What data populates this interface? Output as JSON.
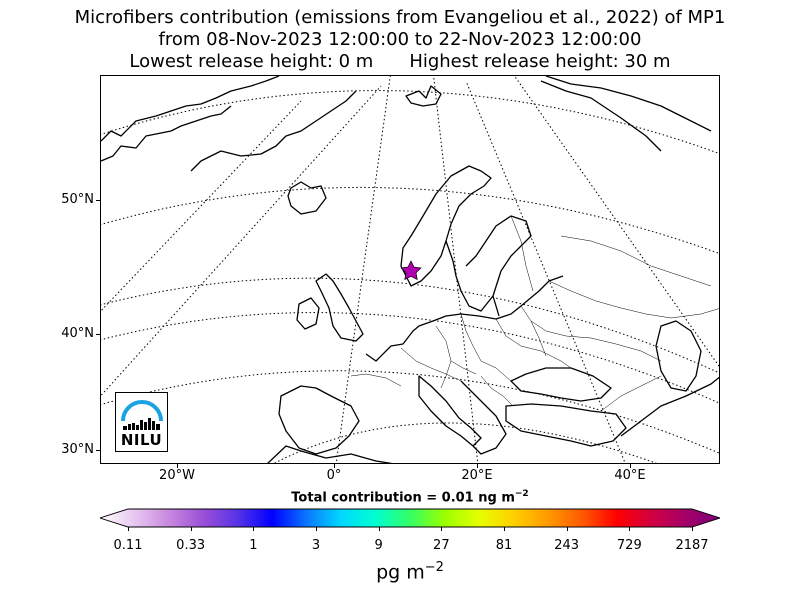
{
  "title": {
    "line1": "Microfibers contribution (emissions from Evangeliou et al., 2022) of MP1",
    "line2": "from 08-Nov-2023 12:00:00 to 22-Nov-2023 12:00:00",
    "lowest": "Lowest release height: 0 m",
    "highest": "Highest release height: 30 m"
  },
  "map": {
    "lat_labels": [
      "50°N",
      "40°N",
      "30°N"
    ],
    "lon_labels": [
      "20°W",
      "0°",
      "20°E",
      "40°E"
    ],
    "marker_icon": "star-icon",
    "marker_color": "#b000b0"
  },
  "logo": {
    "text": "NILU",
    "arc_color": "#1aa3e0"
  },
  "total": {
    "prefix": "Total contribution = 0.01 ng m",
    "exponent": "−2"
  },
  "colorbar": {
    "ticks": [
      "0.11",
      "0.33",
      "1",
      "3",
      "9",
      "27",
      "81",
      "243",
      "729",
      "2187"
    ],
    "colors": [
      "#ffffff",
      "#e7c8f0",
      "#c988df",
      "#9a4fd6",
      "#5533e6",
      "#0000ff",
      "#0a77ff",
      "#00d8ff",
      "#00ffd0",
      "#33ff66",
      "#9aff00",
      "#e6ff00",
      "#ffd000",
      "#ff9a00",
      "#ff5a00",
      "#ff0000",
      "#d20040",
      "#a40068",
      "#7a007a"
    ],
    "unit": "pg m",
    "unit_exponent": "−2"
  }
}
